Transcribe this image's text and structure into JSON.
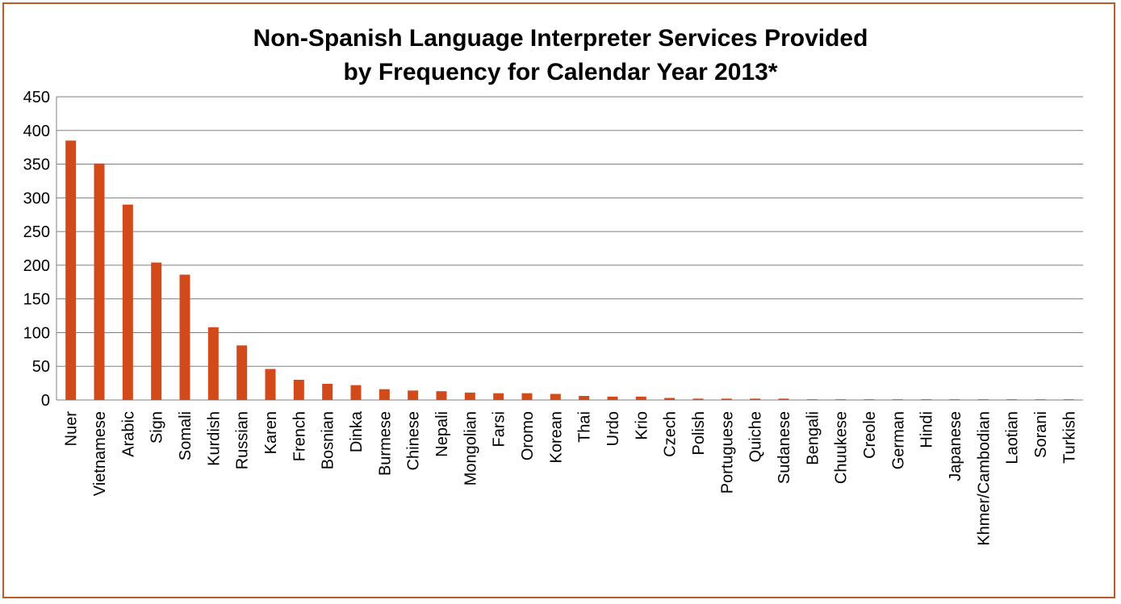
{
  "chart_data": {
    "type": "bar",
    "title": [
      "Non-Spanish Language Interpreter Services Provided",
      "by Frequency for Calendar Year 2013*"
    ],
    "xlabel": "",
    "ylabel": "",
    "ylim": [
      0,
      450
    ],
    "yticks": [
      "0",
      "50",
      "100",
      "150",
      "200",
      "250",
      "300",
      "350",
      "400",
      "450"
    ],
    "grid": true,
    "bar_color": "#d24a1a",
    "border_color": "#c0582a",
    "categories": [
      "Nuer",
      "Vietnamese",
      "Arabic",
      "Sign",
      "Somali",
      "Kurdish",
      "Russian",
      "Karen",
      "French",
      "Bosnian",
      "Dinka",
      "Burmese",
      "Chinese",
      "Nepali",
      "Mongolian",
      "Farsi",
      "Oromo",
      "Korean",
      "Thai",
      "Urdo",
      "Krio",
      "Czech",
      "Polish",
      "Portuguese",
      "Quiche",
      "Sudanese",
      "Bengali",
      "Chuukese",
      "Creole",
      "German",
      "Hindi",
      "Japanese",
      "Khmer/Cambodian",
      "Laotian",
      "Sorani",
      "Turkish"
    ],
    "values": [
      385,
      351,
      290,
      204,
      186,
      108,
      81,
      46,
      30,
      24,
      22,
      16,
      14,
      13,
      11,
      10,
      10,
      9,
      6,
      5,
      5,
      3,
      2,
      2,
      2,
      2,
      1,
      1,
      1,
      1,
      1,
      1,
      1,
      1,
      1,
      1
    ]
  }
}
